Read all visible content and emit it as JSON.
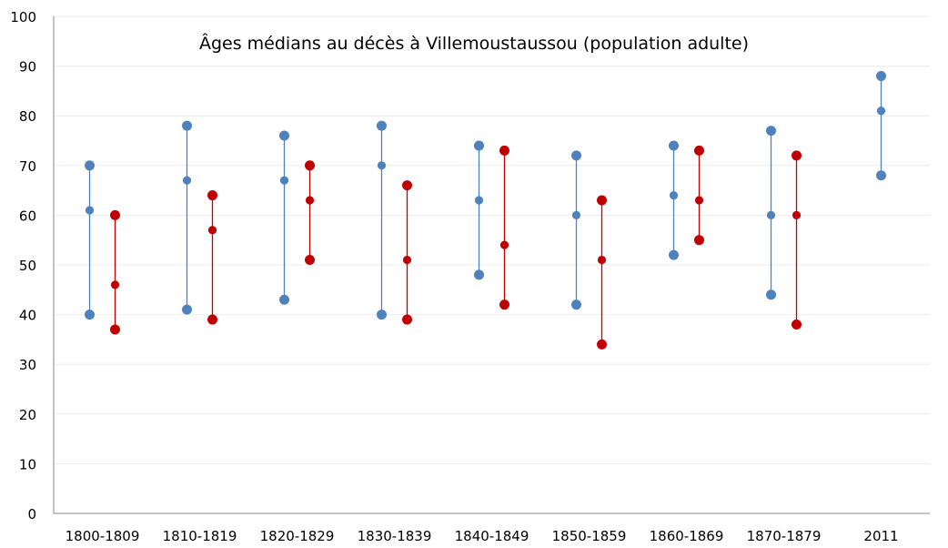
{
  "chart_data": {
    "type": "scatter",
    "title": "Âges médians au décès à Villemoustaussou (population adulte)",
    "xlabel": "",
    "ylabel": "",
    "ylim": [
      0,
      100
    ],
    "yticks": [
      0,
      10,
      20,
      30,
      40,
      50,
      60,
      70,
      80,
      90,
      100
    ],
    "grid": true,
    "legend": "none",
    "categories": [
      "1800-1809",
      "1810-1819",
      "1820-1829",
      "1830-1839",
      "1840-1849",
      "1850-1859",
      "1860-1869",
      "1870-1879",
      "2011"
    ],
    "series": [
      {
        "color": "#4F81BD",
        "values": [
          {
            "low": 40,
            "median": 61,
            "high": 70
          },
          {
            "low": 41,
            "median": 67,
            "high": 78
          },
          {
            "low": 43,
            "median": 67,
            "high": 76
          },
          {
            "low": 40,
            "median": 70,
            "high": 78
          },
          {
            "low": 48,
            "median": 63,
            "high": 74
          },
          {
            "low": 42,
            "median": 60,
            "high": 72
          },
          {
            "low": 52,
            "median": 64,
            "high": 74
          },
          {
            "low": 44,
            "median": 60,
            "high": 77
          },
          {
            "low": 68,
            "median": 81,
            "high": 88
          }
        ]
      },
      {
        "color": "#C00000",
        "values": [
          {
            "low": 37,
            "median": 46,
            "high": 60
          },
          {
            "low": 39,
            "median": 57,
            "high": 64
          },
          {
            "low": 51,
            "median": 63,
            "high": 70
          },
          {
            "low": 39,
            "median": 51,
            "high": 66
          },
          {
            "low": 42,
            "median": 54,
            "high": 73
          },
          {
            "low": 34,
            "median": 51,
            "high": 63
          },
          {
            "low": 55,
            "median": 63,
            "high": 73
          },
          {
            "low": 38,
            "median": 60,
            "high": 72
          },
          null
        ]
      }
    ]
  }
}
